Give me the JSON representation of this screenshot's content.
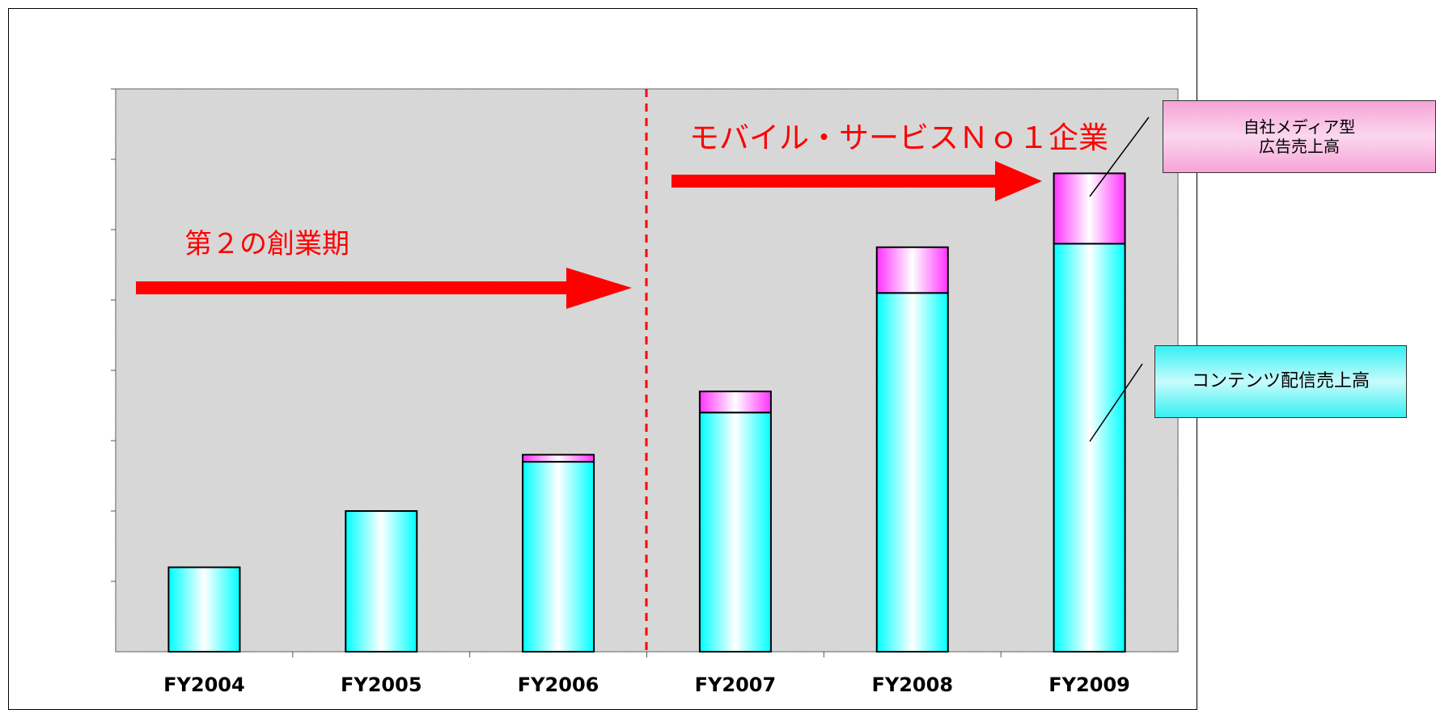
{
  "chart_data": {
    "type": "bar",
    "stacked": true,
    "categories": [
      "FY2004",
      "FY2005",
      "FY2006",
      "FY2007",
      "FY2008",
      "FY2009"
    ],
    "series": [
      {
        "name": "コンテンツ配信売上高",
        "values": [
          1.2,
          2.0,
          2.7,
          3.4,
          5.1,
          5.8
        ],
        "color": "#00ffff"
      },
      {
        "name": "自社メディア型\n広告売上高",
        "values": [
          0.0,
          0.0,
          0.1,
          0.3,
          0.65,
          1.0
        ],
        "color": "#ff33ff"
      }
    ],
    "ylim": [
      0,
      8
    ],
    "y_ticks": 8,
    "grid": false,
    "annotations": {
      "phase1": "第２の創業期",
      "phase2": "モバイル・サービスＮｏ１企業"
    },
    "colors": {
      "annotation": "#ff0000",
      "divider": "#ff0000"
    }
  }
}
